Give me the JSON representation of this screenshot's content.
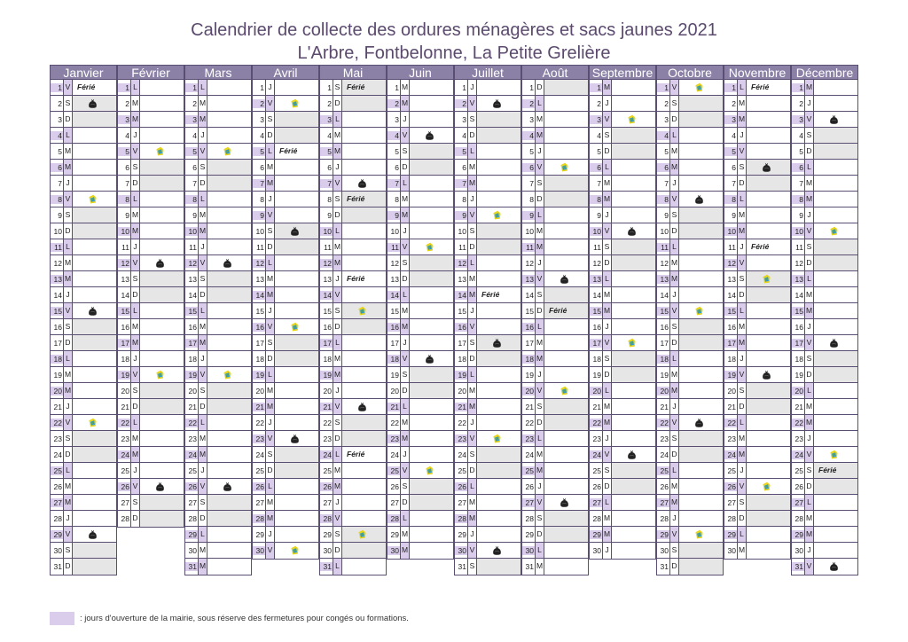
{
  "title": "Calendrier de collecte des ordures ménagères et sacs jaunes 2021",
  "subtitle": "L'Arbre, Fontbelonne, La Petite Grelière",
  "legend": ": jours d'ouverture de la mairie, sous réserve des fermetures pour congés ou formations.",
  "colors": {
    "open_day": "#d9cdeb",
    "header": "#8b80a6",
    "weekend": "#e6e6e6",
    "title": "#5b4a6e"
  },
  "icons": {
    "b": "black-bag-icon",
    "y": "yellow-bag-icon"
  },
  "ferie_label": "Férié",
  "months": [
    {
      "name": "Janvier",
      "first": "V",
      "days": 31,
      "marks": {
        "1": "F",
        "2": "b",
        "8": "y",
        "15": "b",
        "22": "y",
        "29": "b"
      }
    },
    {
      "name": "Février",
      "first": "L",
      "days": 28,
      "marks": {
        "5": "y",
        "12": "b",
        "19": "y",
        "26": "b"
      }
    },
    {
      "name": "Mars",
      "first": "L",
      "days": 31,
      "marks": {
        "5": "y",
        "12": "b",
        "19": "y",
        "26": "b"
      }
    },
    {
      "name": "Avril",
      "first": "J",
      "days": 30,
      "marks": {
        "2": "y",
        "5": "F",
        "10": "b",
        "16": "y",
        "23": "b",
        "30": "y"
      }
    },
    {
      "name": "Mai",
      "first": "S",
      "days": 31,
      "marks": {
        "1": "F",
        "7": "b",
        "8": "F",
        "13": "F",
        "15": "y",
        "21": "b",
        "24": "F",
        "29": "y"
      }
    },
    {
      "name": "Juin",
      "first": "M",
      "days": 30,
      "marks": {
        "4": "b",
        "11": "y",
        "18": "b",
        "25": "y"
      }
    },
    {
      "name": "Juillet",
      "first": "J",
      "days": 31,
      "marks": {
        "2": "b",
        "9": "y",
        "14": "F",
        "17": "b",
        "23": "y",
        "30": "b"
      }
    },
    {
      "name": "Août",
      "first": "D",
      "days": 31,
      "marks": {
        "6": "y",
        "13": "b",
        "15": "F",
        "20": "y",
        "27": "b"
      }
    },
    {
      "name": "Septembre",
      "first": "M",
      "days": 30,
      "marks": {
        "3": "y",
        "10": "b",
        "17": "y",
        "24": "b"
      }
    },
    {
      "name": "Octobre",
      "first": "V",
      "days": 31,
      "marks": {
        "1": "y",
        "8": "b",
        "15": "y",
        "22": "b",
        "29": "y"
      }
    },
    {
      "name": "Novembre",
      "first": "L",
      "days": 30,
      "marks": {
        "1": "F",
        "6": "b",
        "11": "F",
        "13": "y",
        "19": "b",
        "26": "y"
      }
    },
    {
      "name": "Décembre",
      "first": "M",
      "days": 31,
      "marks": {
        "3": "b",
        "10": "y",
        "17": "b",
        "24": "y",
        "25": "F",
        "31": "b"
      }
    }
  ]
}
